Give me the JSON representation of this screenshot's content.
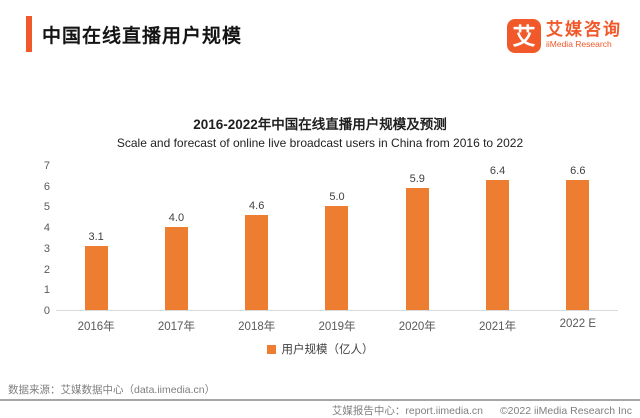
{
  "header": {
    "title": "中国在线直播用户规模",
    "logo": {
      "glyph": "艾",
      "name_cn": "艾媒咨询",
      "name_en": "iiMedia Research"
    }
  },
  "chart": {
    "title": "2016-2022年中国在线直播用户规模及预测",
    "subtitle": "Scale and forecast of online live broadcast users in China from 2016 to 2022",
    "legend_label": "用户规模（亿人）"
  },
  "chart_data": {
    "type": "bar",
    "title": "2016-2022年中国在线直播用户规模及预测",
    "subtitle": "Scale and forecast of online live broadcast users in China from 2016 to 2022",
    "categories": [
      "2016年",
      "2017年",
      "2018年",
      "2019年",
      "2020年",
      "2021年",
      "2022 E"
    ],
    "values": [
      3.1,
      4.0,
      4.6,
      5.0,
      5.9,
      6.4,
      6.6
    ],
    "value_labels": [
      "3.1",
      "4.0",
      "4.6",
      "5.0",
      "5.9",
      "6.4",
      "6.6"
    ],
    "ylabel": "",
    "xlabel": "",
    "ylim": [
      0,
      7
    ],
    "yticks": [
      0,
      1,
      2,
      3,
      4,
      5,
      6,
      7
    ],
    "grid": false,
    "legend": [
      "用户规模（亿人）"
    ],
    "legend_position": "bottom",
    "bar_color": "#ED7D31"
  },
  "footer": {
    "source": "数据来源：艾媒数据中心（data.iimedia.cn）",
    "report_center": "艾媒报告中心：report.iimedia.cn",
    "copyright": "©2022  iiMedia Research  Inc"
  },
  "colors": {
    "accent": "#F1592A",
    "bar": "#ED7D31",
    "axis_line": "#D9D9D9",
    "text_muted": "#7F7F7F"
  }
}
